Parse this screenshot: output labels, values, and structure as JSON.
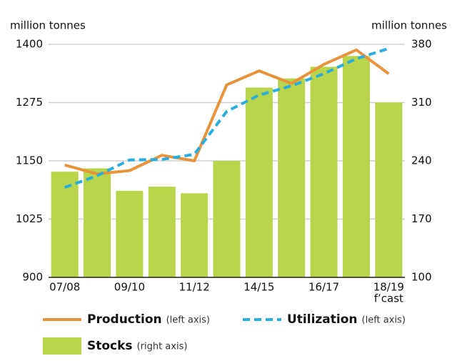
{
  "chart_data": {
    "type": "bar-line",
    "ylabel": "million tonnes",
    "y2label": "million tonnes",
    "categories": [
      "07/08",
      null,
      "09/10",
      null,
      "11/12",
      null,
      "14/15",
      null,
      "16/17",
      null,
      "18/19"
    ],
    "category_note": "f’cast",
    "ylim": [
      900,
      1400
    ],
    "yticks": [
      900,
      1025,
      1150,
      1275,
      1400
    ],
    "y2lim": [
      100,
      380
    ],
    "y2ticks": [
      100,
      170,
      240,
      310,
      380
    ],
    "grid": true,
    "series": [
      {
        "name": "Stocks",
        "note": "(right axis)",
        "type": "bar",
        "axis": "y2",
        "color": "#b8d44a",
        "values": [
          227,
          231,
          204,
          209,
          201,
          240,
          328,
          339,
          353,
          366,
          310
        ]
      },
      {
        "name": "Production",
        "note": "(left axis)",
        "type": "line",
        "color": "#e8923a",
        "dashed": false,
        "values": [
          1141,
          1122,
          1129,
          1162,
          1150,
          1313,
          1343,
          1316,
          1357,
          1388,
          1337
        ]
      },
      {
        "name": "Utilization",
        "note": "(left axis)",
        "type": "line",
        "color": "#2aaede",
        "dashed": true,
        "values": [
          1093,
          1118,
          1152,
          1153,
          1164,
          1256,
          1291,
          1311,
          1337,
          1369,
          1391
        ]
      }
    ]
  }
}
